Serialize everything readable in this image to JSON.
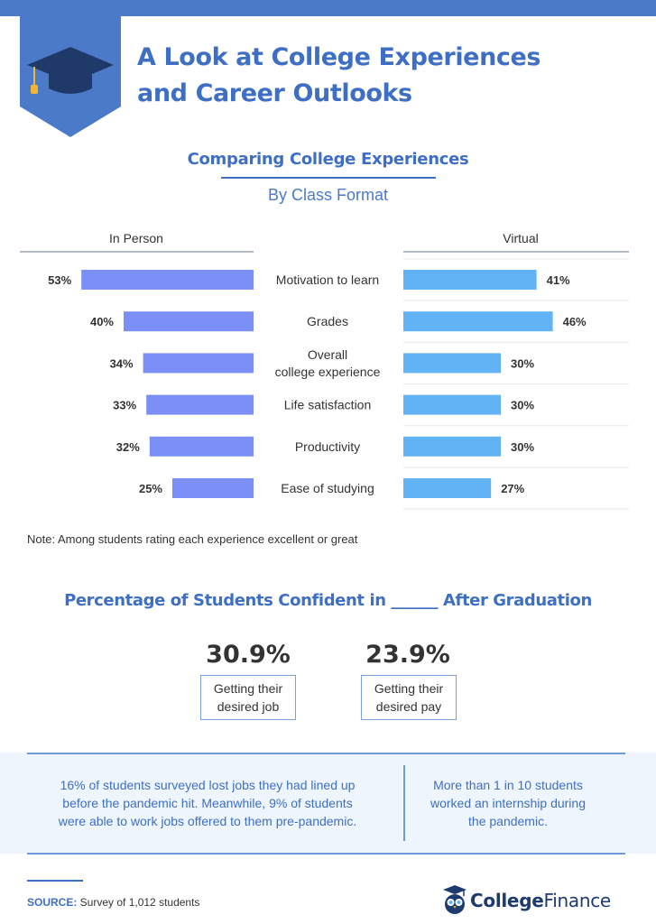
{
  "header": {
    "title_line1": "A Look at College Experiences",
    "title_line2": "and Career Outlooks",
    "badge_icon": "graduation-cap-icon"
  },
  "section1": {
    "title": "Comparing College Experiences",
    "subtitle": "By Class Format"
  },
  "chart_data": {
    "type": "bar",
    "orientation": "horizontal-butterfly",
    "categories": [
      "Motivation to learn",
      "Grades",
      "Overall\ncollege experience",
      "Life satisfaction",
      "Productivity",
      "Ease of studying"
    ],
    "series": [
      {
        "name": "In Person",
        "values": [
          53,
          40,
          34,
          33,
          32,
          25
        ],
        "labels": [
          "53%",
          "40%",
          "34%",
          "33%",
          "32%",
          "25%"
        ],
        "color": "#7b8ff6"
      },
      {
        "name": "Virtual",
        "values": [
          41,
          46,
          30,
          30,
          30,
          27
        ],
        "labels": [
          "41%",
          "46%",
          "30%",
          "30%",
          "30%",
          "27%"
        ],
        "color": "#62b3f5"
      }
    ],
    "unit": "%",
    "xlim": [
      0,
      60
    ],
    "grid": false,
    "legend": "column-headers"
  },
  "note": "Note: Among students rating each experience excellent or great",
  "section2": {
    "title": "Percentage of Students Confident in ______ After Graduation",
    "stats": [
      {
        "value": "30.9%",
        "line1": "Getting their",
        "line2": "desired job"
      },
      {
        "value": "23.9%",
        "line1": "Getting their",
        "line2": "desired pay"
      }
    ]
  },
  "info": {
    "left": [
      "16% of students surveyed lost jobs they had lined up",
      "before the pandemic hit. Meanwhile, 9% of students",
      "were able to work jobs offered to them pre-pandemic."
    ],
    "right": [
      "More than 1 in 10 students",
      "worked an internship during",
      "the pandemic."
    ]
  },
  "source": {
    "label": "SOURCE:",
    "text": " Survey of 1,012 students"
  },
  "logo": {
    "part1": "College",
    "part2": "Finance",
    "icon": "owl-logo-icon"
  },
  "colors": {
    "brand_blue": "#3e6fc4",
    "in_person_bar": "#7b8ff6",
    "virtual_bar": "#62b3f5",
    "info_background": "#eef5fd"
  }
}
